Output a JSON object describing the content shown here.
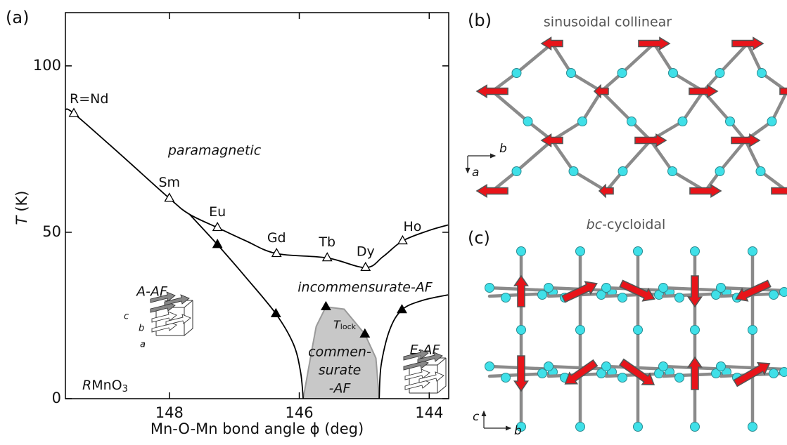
{
  "panels": {
    "a": "(a)",
    "b": "(b)",
    "c": "(c)"
  },
  "chart_data": {
    "type": "scatter",
    "xlabel": "Mn-O-Mn bond angle ϕ  (deg)",
    "ylabel_symbol": "T",
    "ylabel_unit": "(K)",
    "xlim": [
      149.6,
      143.7
    ],
    "ylim": [
      0,
      116
    ],
    "xticks": [
      148,
      146,
      144
    ],
    "yticks": [
      0,
      50,
      100
    ],
    "series": [
      {
        "marker": "open-triangle",
        "color": "#000",
        "x": [
          149.47,
          148.0,
          147.26,
          146.35,
          145.57,
          144.98,
          144.41
        ],
        "values": [
          85.7,
          60.2,
          51.4,
          43.6,
          42.3,
          39.4,
          47.4
        ],
        "point_labels": [
          "R=Nd",
          "Sm",
          "Eu",
          "Gd",
          "Tb",
          "Dy",
          "Ho"
        ]
      },
      {
        "marker": "filled-triangle",
        "color": "#000",
        "x": [
          147.26,
          146.36,
          145.59,
          144.99,
          144.42
        ],
        "values": [
          46.3,
          25.5,
          27.6,
          19.4,
          26.7
        ]
      }
    ],
    "boundaries": [
      {
        "color": "#000",
        "x": [
          149.6,
          149.47,
          148.77,
          148.0,
          147.69,
          147.26,
          146.82,
          146.35,
          145.57,
          144.98,
          144.71,
          144.41,
          144.01,
          143.71
        ],
        "values": [
          86.9,
          85.7,
          73.7,
          60.2,
          55.4,
          51.4,
          47.4,
          43.6,
          42.3,
          39.4,
          42.7,
          47.4,
          50.5,
          52.2
        ]
      },
      {
        "color": "#000",
        "x": [
          147.69,
          147.26,
          146.82,
          146.36,
          146.09,
          145.98,
          145.94
        ],
        "values": [
          55.4,
          46.3,
          36.4,
          25.5,
          16.4,
          8.0,
          0
        ]
      },
      {
        "color": "#000",
        "x": [
          144.77,
          144.74,
          144.61,
          144.42,
          144.11,
          143.71
        ],
        "values": [
          0,
          10.1,
          20.6,
          26.7,
          29.5,
          31.2
        ]
      }
    ],
    "regions": [
      {
        "fill": "#c8c8c8",
        "edge": "#9a9a9a",
        "x": [
          145.94,
          145.81,
          145.74,
          145.59,
          145.31,
          144.99,
          144.82,
          144.77
        ],
        "values": [
          0,
          14.3,
          21.7,
          27.6,
          26.9,
          19.4,
          12.2,
          0
        ]
      }
    ],
    "annotations": [
      "paramagnetic",
      "incommensurate-AF",
      "A-AF",
      "E-AF"
    ],
    "commensurate": [
      "commen-",
      "surate",
      "-AF"
    ],
    "tlock": {
      "symbol": "T",
      "subscript": "lock"
    },
    "compound": {
      "prefix": "R",
      "formula": "MnO",
      "subscript": "3"
    },
    "inset_axes": [
      "c",
      "b",
      "a"
    ]
  },
  "panel_b": {
    "title": "sinusoidal collinear",
    "axes": [
      "b",
      "a"
    ]
  },
  "panel_c": {
    "title_italic": "bc",
    "title": "-cycloidal",
    "axes": [
      "c",
      "b"
    ]
  }
}
